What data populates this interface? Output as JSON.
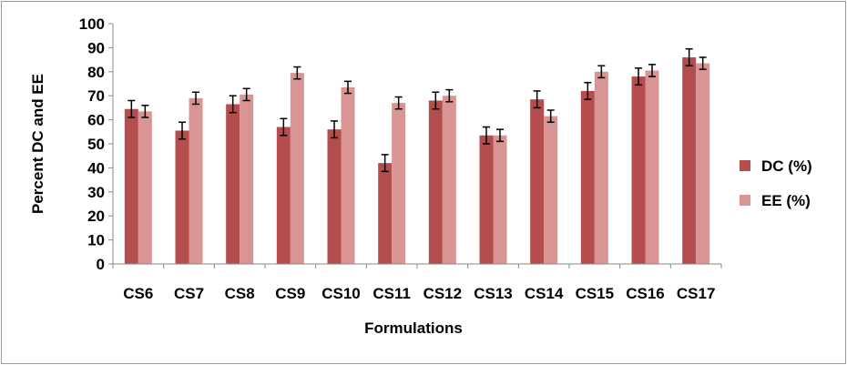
{
  "chart_data": {
    "type": "bar",
    "title": "",
    "xlabel": "Formulations",
    "ylabel": "Percent DC and EE",
    "ylim": [
      0,
      100
    ],
    "yticks": [
      0,
      10,
      20,
      30,
      40,
      50,
      60,
      70,
      80,
      90,
      100
    ],
    "grid": false,
    "legend_position": "right",
    "categories": [
      "CS6",
      "CS7",
      "CS8",
      "CS9",
      "CS10",
      "CS11",
      "CS12",
      "CS13",
      "CS14",
      "CS15",
      "CS16",
      "CS17"
    ],
    "series": [
      {
        "name": "DC (%)",
        "color": "#b44d4d",
        "values": [
          64.5,
          55.5,
          66.5,
          57,
          56,
          42,
          68,
          53.5,
          68.5,
          72,
          78,
          86
        ],
        "errors": [
          3.5,
          3.5,
          3.5,
          3.5,
          3.5,
          3.5,
          3.5,
          3.5,
          3.5,
          3.5,
          3.5,
          3.5
        ]
      },
      {
        "name": "EE (%)",
        "color": "#d99593",
        "values": [
          63.5,
          69,
          70.5,
          79.5,
          73.5,
          67,
          70,
          53.5,
          61.5,
          80,
          80.5,
          83.5
        ],
        "errors": [
          2.5,
          2.5,
          2.5,
          2.5,
          2.5,
          2.5,
          2.5,
          2.5,
          2.5,
          2.5,
          2.5,
          2.5
        ]
      }
    ]
  }
}
